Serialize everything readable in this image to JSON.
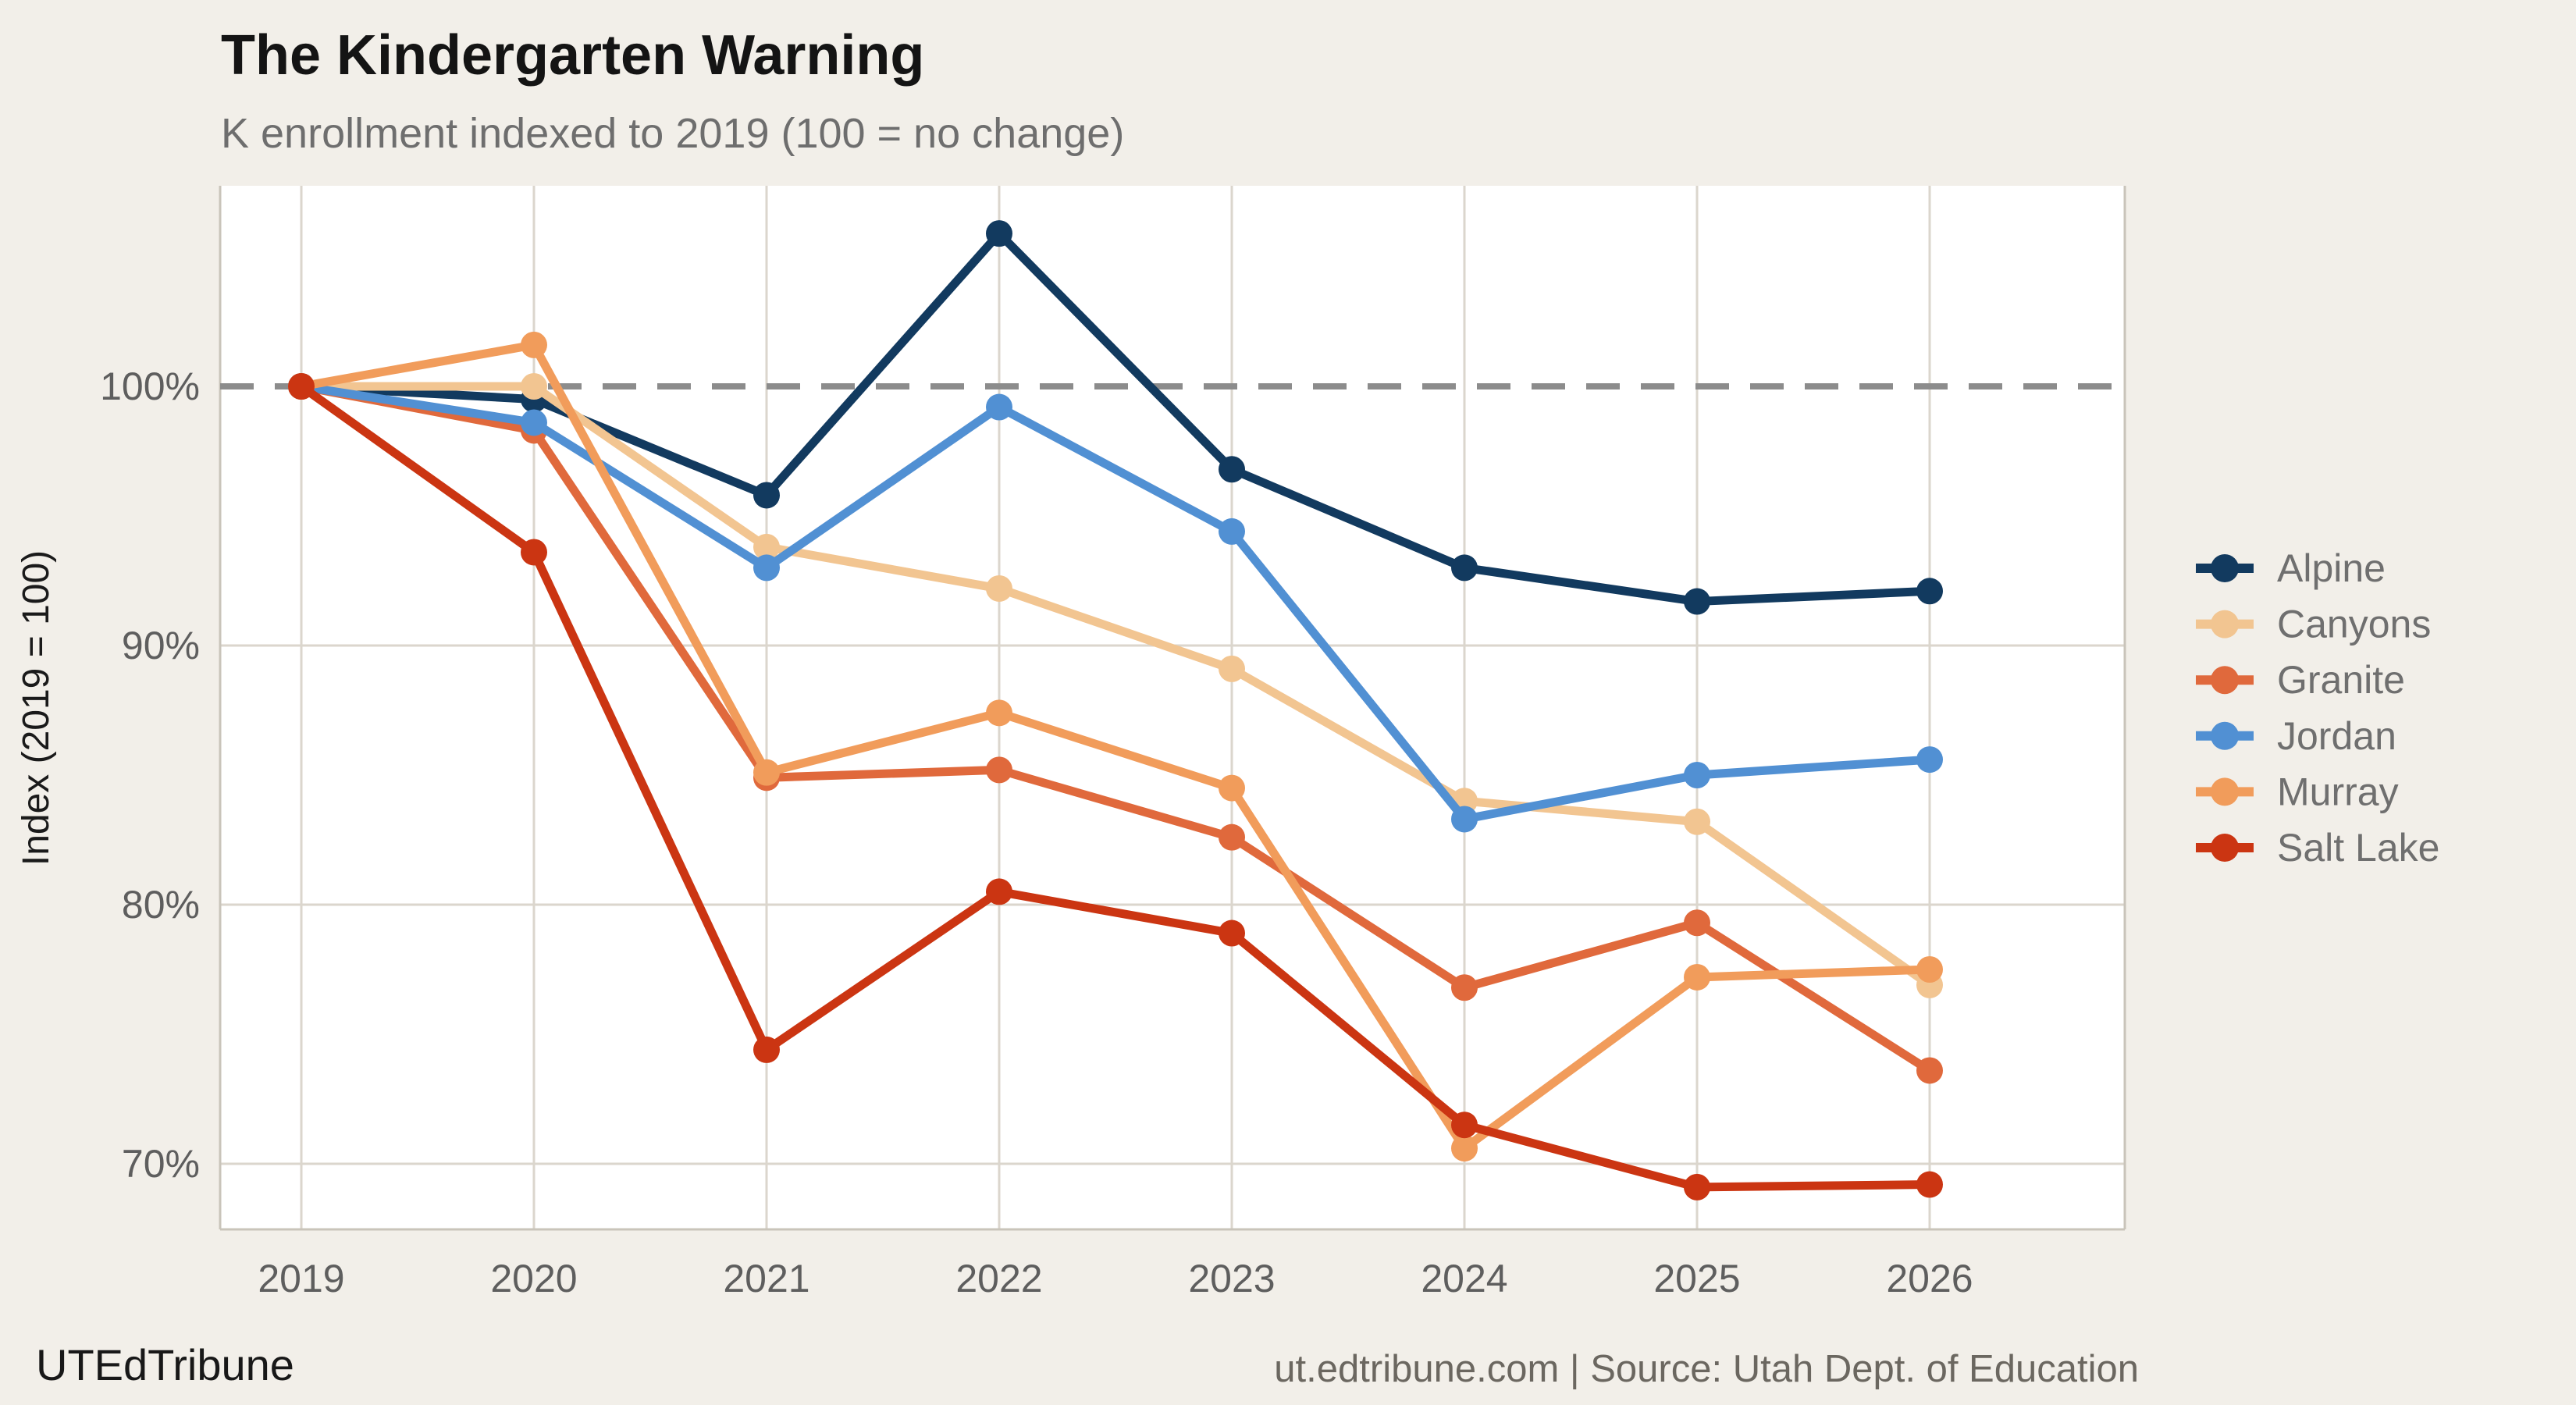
{
  "header": {
    "title": "The Kindergarten Warning",
    "subtitle": "K enrollment indexed to 2019 (100 = no change)"
  },
  "footer": {
    "brand": "UTEdTribune",
    "source": "ut.edtribune.com | Source: Utah Dept. of Education"
  },
  "chart_data": {
    "type": "line",
    "x": [
      "2019",
      "2020",
      "2021",
      "2022",
      "2023",
      "2024",
      "2025",
      "2026"
    ],
    "series": [
      {
        "name": "Alpine",
        "color": "#123A5F",
        "values": [
          100,
          99.5,
          95.8,
          105.9,
          96.8,
          93.0,
          91.7,
          92.1
        ]
      },
      {
        "name": "Canyons",
        "color": "#F2C591",
        "values": [
          100,
          100.0,
          93.8,
          92.2,
          89.1,
          84.0,
          83.2,
          76.9
        ]
      },
      {
        "name": "Granite",
        "color": "#E0693C",
        "values": [
          100,
          98.3,
          84.9,
          85.2,
          82.6,
          76.8,
          79.3,
          73.6
        ]
      },
      {
        "name": "Jordan",
        "color": "#5190D3",
        "values": [
          100,
          98.6,
          93.0,
          99.2,
          94.4,
          83.3,
          85.0,
          85.6
        ]
      },
      {
        "name": "Murray",
        "color": "#F19C5B",
        "values": [
          100,
          101.6,
          85.1,
          87.4,
          84.5,
          70.6,
          77.2,
          77.5
        ]
      },
      {
        "name": "Salt Lake",
        "color": "#CB3512",
        "values": [
          100,
          93.6,
          74.4,
          80.5,
          78.9,
          71.5,
          69.1,
          69.2
        ]
      }
    ],
    "title": "The Kindergarten Warning",
    "subtitle": "K enrollment indexed to 2019 (100 = no change)",
    "xlabel": "",
    "ylabel": "Index (2019 = 100)",
    "yticks": [
      {
        "value": 100,
        "label": "100%"
      },
      {
        "value": 90,
        "label": "90%"
      },
      {
        "value": 80,
        "label": "80%"
      },
      {
        "value": 70,
        "label": "70%"
      }
    ],
    "ylim": [
      67.5,
      107.7
    ],
    "reference_line": {
      "value": 100,
      "style": "dashed"
    },
    "grid": true,
    "legend_position": "right"
  },
  "colors": {
    "background": "#F2EFE9",
    "plot_background": "#FFFFFF",
    "gridline": "#DBD6CD",
    "plot_border": "#C9C4BA",
    "reference_line": "#8C8C8C",
    "tick_text": "#5E5E5E",
    "axis_title_text": "#1A1A1A",
    "legend_text": "#6F6F6F"
  }
}
